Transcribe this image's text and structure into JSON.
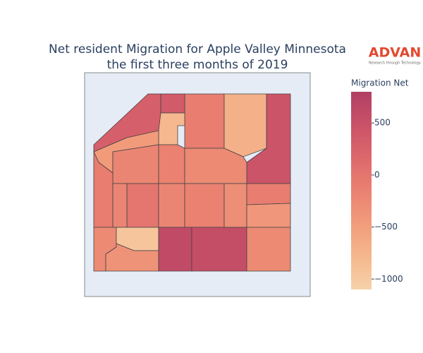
{
  "chart_data": {
    "type": "choropleth",
    "title": [
      "Net resident Migration for Apple Valley Minnesota",
      "the first three months of 2019"
    ],
    "colorbar_title": "Migration Net",
    "zlim": [
      -1100,
      800
    ],
    "colorscale": [
      "#f6d2a9",
      "#f5b78e",
      "#f19c7c",
      "#ea8171",
      "#dd686c",
      "#ca5268",
      "#b13f64"
    ],
    "cticks": [
      {
        "value": 500,
        "label": "500"
      },
      0,
      {
        "value": -500,
        "label": "−500"
      },
      {
        "value": -1000,
        "label": "−1000"
      }
    ],
    "values": [
      300,
      350,
      -100,
      -700,
      450,
      -800,
      -450,
      -200,
      -150,
      -250,
      -100,
      0,
      -200,
      -200,
      -150,
      -300,
      -100,
      -400,
      -250,
      -950,
      -350,
      600,
      550,
      -250
    ],
    "logo": {
      "name": "ADVAN",
      "tagline": "Research through Technology"
    }
  }
}
